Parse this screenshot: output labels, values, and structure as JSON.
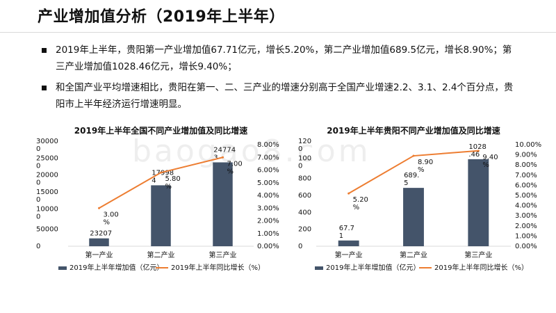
{
  "page": {
    "title": "产业增加值分析（2019年上半年）",
    "bullets": [
      "2019年上半年，贵阳第一产业增加值67.71亿元，增长5.20%，第二产业增加值689.5亿元，增长8.90%；第三产业增加值1028.46亿元，增长9.40%；",
      "和全国产业平均增速相比，贵阳在第一、二、三产业的增速分别高于全国产业增速2.2、3.1、2.4个百分点，贵阳市上半年经济运行增速明显。"
    ],
    "watermark": "baogao8.com"
  },
  "colors": {
    "bar": "#44546A",
    "line": "#ED7D31",
    "text": "#111111",
    "axis": "#d9d9d9"
  },
  "chart_data": [
    {
      "type": "bar",
      "title": "2019年上半年全国不同产业增加值及同比增速",
      "categories": [
        "第一产业",
        "第二产业",
        "第三产业"
      ],
      "series": [
        {
          "name": "2019年上半年增加值（亿元）",
          "type": "bar",
          "axis": "left",
          "values": [
            23207,
            179984,
            247743
          ],
          "labels": [
            "23207",
            "179984",
            "247743"
          ]
        },
        {
          "name": "2019年上半年同比增长（%）",
          "type": "line",
          "axis": "right",
          "values": [
            3.0,
            5.8,
            7.0
          ],
          "labels": [
            "3.00%",
            "5.80%",
            "7.00%"
          ]
        }
      ],
      "left_axis": {
        "min": 0,
        "max": 300000,
        "ticks": [
          "0",
          "50000",
          "100000",
          "150000",
          "200000",
          "250000",
          "300000"
        ]
      },
      "right_axis": {
        "min": 0,
        "max": 8,
        "ticks": [
          "0.00%",
          "1.00%",
          "2.00%",
          "3.00%",
          "4.00%",
          "5.00%",
          "6.00%",
          "7.00%",
          "8.00%"
        ]
      },
      "legend": "bottom"
    },
    {
      "type": "bar",
      "title": "2019年上半年贵阳不同产业增加值及同比增速",
      "categories": [
        "第一产业",
        "第二产业",
        "第三产业"
      ],
      "series": [
        {
          "name": "2019年上半年增加值（亿元）",
          "type": "bar",
          "axis": "left",
          "values": [
            67.71,
            689.5,
            1028.46
          ],
          "labels": [
            "67.71",
            "689.5",
            "1028.46"
          ]
        },
        {
          "name": "2019年上半年同比增长（%）",
          "type": "line",
          "axis": "right",
          "values": [
            5.2,
            8.9,
            9.4
          ],
          "labels": [
            "5.20%",
            "8.90%",
            "9.40%"
          ]
        }
      ],
      "left_axis": {
        "min": 0,
        "max": 1200,
        "ticks": [
          "0",
          "200",
          "400",
          "600",
          "800",
          "1000",
          "1200"
        ]
      },
      "right_axis": {
        "min": 0,
        "max": 10,
        "ticks": [
          "0.00%",
          "1.00%",
          "2.00%",
          "3.00%",
          "4.00%",
          "5.00%",
          "6.00%",
          "7.00%",
          "8.00%",
          "9.00%",
          "10.00%"
        ]
      },
      "legend": "bottom"
    }
  ]
}
